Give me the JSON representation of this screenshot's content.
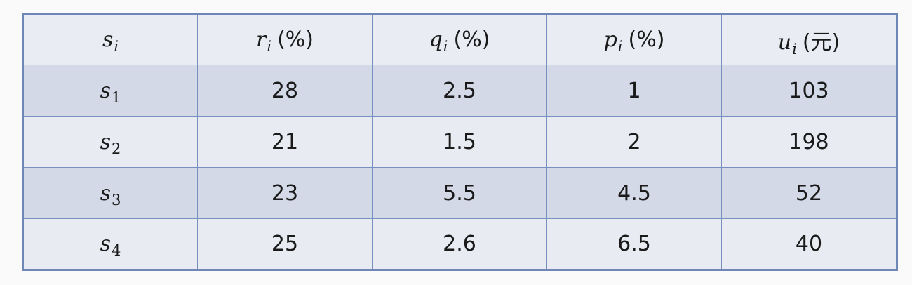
{
  "table": {
    "headers": [
      {
        "var": "s",
        "sub": "i",
        "unit": ""
      },
      {
        "var": "r",
        "sub": "i",
        "unit": "(%)"
      },
      {
        "var": "q",
        "sub": "i",
        "unit": "(%)"
      },
      {
        "var": "p",
        "sub": "i",
        "unit": "(%)"
      },
      {
        "var": "u",
        "sub": "i",
        "unit": "(元)"
      }
    ],
    "rows": [
      {
        "label_var": "s",
        "label_sub": "1",
        "r": "28",
        "q": "2.5",
        "p": "1",
        "u": "103"
      },
      {
        "label_var": "s",
        "label_sub": "2",
        "r": "21",
        "q": "1.5",
        "p": "2",
        "u": "198"
      },
      {
        "label_var": "s",
        "label_sub": "3",
        "r": "23",
        "q": "5.5",
        "p": "4.5",
        "u": "52"
      },
      {
        "label_var": "s",
        "label_sub": "4",
        "r": "25",
        "q": "2.6",
        "p": "6.5",
        "u": "40"
      }
    ]
  },
  "colors": {
    "border": "#6e86b8",
    "row_dark": "#d3d9e6",
    "row_light": "#e8ebf2",
    "header": "#e9ecf3"
  }
}
